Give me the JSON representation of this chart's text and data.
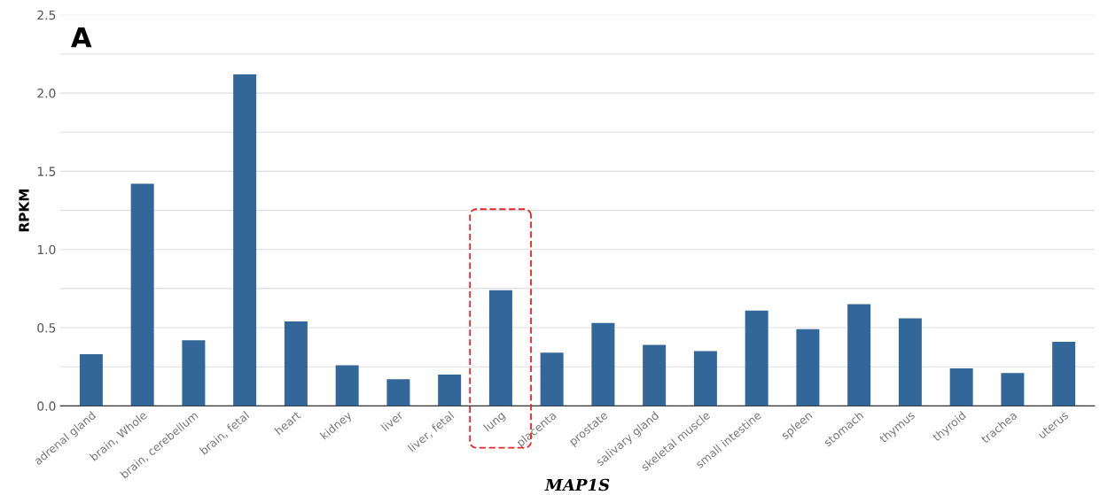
{
  "chart_data": {
    "type": "bar",
    "xlabel": "MAP1S",
    "ylabel": "RPKM",
    "annotations": [
      "A"
    ],
    "categories": [
      "adrenal gland",
      "brain, Whole",
      "brain, cerebellum",
      "brain, fetal",
      "heart",
      "kidney",
      "liver",
      "liver, fetal",
      "lung",
      "placenta",
      "prostate",
      "salivary gland",
      "skeletal muscle",
      "small intestine",
      "spleen",
      "stomach",
      "thymus",
      "thyroid",
      "trachea",
      "uterus"
    ],
    "values": [
      0.33,
      1.42,
      0.42,
      2.12,
      0.54,
      0.26,
      0.17,
      0.2,
      0.74,
      0.34,
      0.53,
      0.39,
      0.35,
      0.61,
      0.49,
      0.65,
      0.56,
      0.24,
      0.21,
      0.41
    ],
    "color": "#336699",
    "ylim": [
      0,
      2.5
    ],
    "yticks": [
      {
        "value": 0,
        "label": "0.0"
      },
      {
        "value": 0.25,
        "label": null
      },
      {
        "value": 0.5,
        "label": "0.5"
      },
      {
        "value": 0.75,
        "label": null
      },
      {
        "value": 1.0,
        "label": "1.0"
      },
      {
        "value": 1.25,
        "label": null
      },
      {
        "value": 1.5,
        "label": "1.5"
      },
      {
        "value": 1.75,
        "label": null
      },
      {
        "value": 2.0,
        "label": "2.0"
      },
      {
        "value": 2.25,
        "label": null
      },
      {
        "value": 2.5,
        "label": "2.5"
      }
    ],
    "grid": "y"
  }
}
